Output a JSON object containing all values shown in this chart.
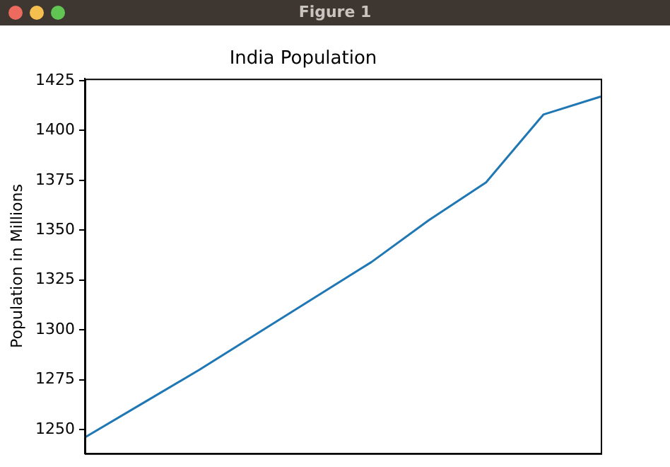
{
  "chart_data": {
    "type": "line",
    "title": "India Population",
    "ylabel": "Population in Millions",
    "annotations": [
      "Figure 1"
    ],
    "categories": [
      null,
      null,
      null,
      null,
      null,
      null,
      null,
      null,
      null,
      null
    ],
    "series": [
      {
        "color": "#1f77b4",
        "values": [
          1246,
          1263,
          1280,
          1298,
          1316,
          1334,
          1355,
          1374,
          1408,
          1417
        ]
      }
    ],
    "ylim": [
      1238,
      1426
    ],
    "yticks": [
      1250,
      1275,
      1300,
      1325,
      1350,
      1375,
      1400,
      1425
    ],
    "tick_labels": "y",
    "grid": false,
    "legend": false,
    "marker": "none",
    "line_style": "solid"
  }
}
